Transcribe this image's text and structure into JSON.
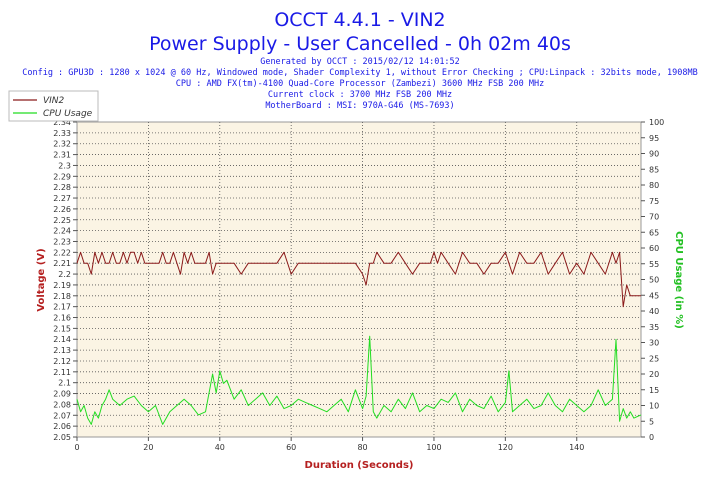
{
  "chart_data": {
    "type": "line",
    "title": "OCCT 4.4.1 - VIN2",
    "subtitle": "Power Supply - User Cancelled - 0h 02m 40s",
    "info_lines": [
      "Generated by OCCT : 2015/02/12 14:01:52",
      "Config : GPU3D : 1280 x 1024 @ 60 Hz, Windowed mode, Shader Complexity 1, without Error Checking ; CPU:Linpack : 32bits mode, 1908MB",
      "CPU : AMD FX(tm)-4100 Quad-Core Processor (Zambezi) 3600 MHz FSB 200 MHz",
      "Current clock : 3700 MHz FSB 200 MHz",
      "MotherBoard : MSI: 970A-G46 (MS-7693)"
    ],
    "xlabel": "Duration (Seconds)",
    "ylabel_left": "Voltage (V)",
    "ylabel_right": "CPU Usage (in %)",
    "xlim": [
      0,
      158
    ],
    "ylim_left": [
      2.05,
      2.34
    ],
    "ylim_right": [
      0,
      100
    ],
    "x_ticks": [
      "0",
      "20",
      "40",
      "60",
      "80",
      "100",
      "120",
      "140"
    ],
    "y_left_ticks": [
      "2.05",
      "2.06",
      "2.07",
      "2.08",
      "2.09",
      "2.1",
      "2.11",
      "2.12",
      "2.13",
      "2.14",
      "2.15",
      "2.16",
      "2.17",
      "2.18",
      "2.19",
      "2.2",
      "2.21",
      "2.22",
      "2.23",
      "2.24",
      "2.25",
      "2.26",
      "2.27",
      "2.28",
      "2.29",
      "2.3",
      "2.31",
      "2.32",
      "2.33",
      "2.34"
    ],
    "y_right_ticks": [
      "0",
      "5",
      "10",
      "15",
      "20",
      "25",
      "30",
      "35",
      "40",
      "45",
      "50",
      "55",
      "60",
      "65",
      "70",
      "75",
      "80",
      "85",
      "90",
      "95",
      "100"
    ],
    "grid": true,
    "legend_position": "top-left",
    "series": [
      {
        "name": "VIN2",
        "axis": "left",
        "color": "#8b1a1a",
        "x": [
          0,
          1,
          2,
          3,
          4,
          5,
          6,
          7,
          8,
          9,
          10,
          11,
          12,
          13,
          14,
          15,
          16,
          17,
          18,
          19,
          20,
          21,
          22,
          23,
          24,
          25,
          26,
          27,
          28,
          29,
          30,
          31,
          32,
          33,
          34,
          35,
          36,
          37,
          38,
          39,
          40,
          42,
          44,
          46,
          48,
          50,
          52,
          54,
          56,
          58,
          60,
          62,
          64,
          66,
          68,
          70,
          72,
          74,
          76,
          78,
          80,
          81,
          82,
          83,
          84,
          86,
          88,
          90,
          92,
          94,
          96,
          98,
          99,
          100,
          101,
          102,
          104,
          106,
          108,
          110,
          112,
          114,
          116,
          118,
          120,
          121,
          122,
          124,
          126,
          128,
          130,
          132,
          134,
          136,
          138,
          140,
          142,
          144,
          146,
          148,
          150,
          151,
          152,
          153,
          154,
          155,
          156,
          158
        ],
        "y": [
          2.21,
          2.22,
          2.21,
          2.21,
          2.2,
          2.22,
          2.21,
          2.22,
          2.21,
          2.21,
          2.22,
          2.21,
          2.21,
          2.22,
          2.21,
          2.22,
          2.22,
          2.21,
          2.22,
          2.21,
          2.21,
          2.21,
          2.21,
          2.21,
          2.22,
          2.21,
          2.21,
          2.22,
          2.21,
          2.2,
          2.22,
          2.21,
          2.22,
          2.21,
          2.21,
          2.21,
          2.21,
          2.22,
          2.2,
          2.21,
          2.21,
          2.21,
          2.21,
          2.2,
          2.21,
          2.21,
          2.21,
          2.21,
          2.21,
          2.22,
          2.2,
          2.21,
          2.21,
          2.21,
          2.21,
          2.21,
          2.21,
          2.21,
          2.21,
          2.21,
          2.2,
          2.19,
          2.21,
          2.21,
          2.22,
          2.21,
          2.21,
          2.22,
          2.21,
          2.2,
          2.21,
          2.21,
          2.21,
          2.22,
          2.21,
          2.22,
          2.21,
          2.2,
          2.22,
          2.21,
          2.21,
          2.2,
          2.21,
          2.21,
          2.22,
          2.21,
          2.2,
          2.22,
          2.21,
          2.21,
          2.22,
          2.2,
          2.21,
          2.22,
          2.2,
          2.21,
          2.2,
          2.22,
          2.21,
          2.2,
          2.22,
          2.21,
          2.22,
          2.17,
          2.19,
          2.18,
          2.18,
          2.18
        ]
      },
      {
        "name": "CPU Usage",
        "axis": "right",
        "color": "#22dd22",
        "x": [
          0,
          1,
          2,
          3,
          4,
          5,
          6,
          7,
          8,
          9,
          10,
          12,
          14,
          16,
          18,
          20,
          22,
          24,
          26,
          28,
          30,
          32,
          34,
          36,
          38,
          39,
          40,
          41,
          42,
          44,
          46,
          48,
          50,
          52,
          54,
          56,
          58,
          60,
          62,
          64,
          66,
          68,
          70,
          72,
          74,
          76,
          78,
          80,
          81,
          82,
          83,
          84,
          86,
          88,
          90,
          92,
          94,
          96,
          98,
          100,
          102,
          104,
          106,
          108,
          110,
          112,
          114,
          116,
          118,
          120,
          121,
          122,
          124,
          126,
          128,
          130,
          132,
          134,
          136,
          138,
          140,
          142,
          144,
          146,
          148,
          150,
          151,
          152,
          153,
          154,
          155,
          156,
          158
        ],
        "y": [
          12,
          8,
          10,
          6,
          4,
          8,
          6,
          10,
          12,
          15,
          12,
          10,
          12,
          13,
          10,
          8,
          10,
          4,
          8,
          10,
          12,
          10,
          7,
          8,
          20,
          14,
          21,
          17,
          18,
          12,
          15,
          10,
          12,
          14,
          10,
          13,
          9,
          10,
          12,
          11,
          10,
          9,
          8,
          10,
          12,
          8,
          15,
          9,
          13,
          32,
          8,
          6,
          10,
          8,
          12,
          9,
          14,
          8,
          10,
          9,
          12,
          11,
          14,
          8,
          12,
          10,
          9,
          13,
          8,
          11,
          21,
          8,
          10,
          12,
          9,
          10,
          14,
          10,
          8,
          12,
          10,
          8,
          10,
          15,
          10,
          12,
          31,
          5,
          9,
          6,
          8,
          6,
          7
        ]
      }
    ]
  }
}
